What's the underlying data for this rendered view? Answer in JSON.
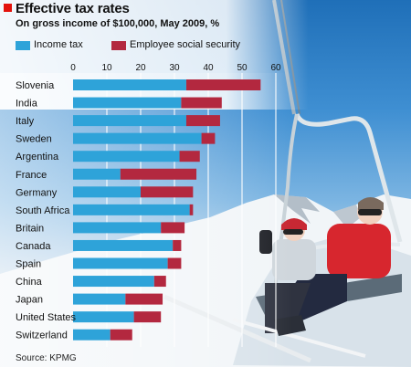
{
  "title": "Effective tax rates",
  "subtitle": "On gross income of $100,000, May 2009, %",
  "source": "Source: KPMG",
  "colors": {
    "income_tax": "#2ea3d9",
    "employee_social_security": "#b3283f",
    "accent": "#e3120b"
  },
  "chart_data": {
    "type": "bar",
    "orientation": "horizontal",
    "stacked": true,
    "title": "Effective tax rates",
    "subtitle": "On gross income of $100,000, May 2009, %",
    "xlim": [
      0,
      60
    ],
    "xticks": [
      "0",
      "10",
      "20",
      "30",
      "40",
      "50",
      "60"
    ],
    "grid": true,
    "legend_position": "top",
    "categories": [
      "Slovenia",
      "India",
      "Italy",
      "Sweden",
      "Argentina",
      "France",
      "Germany",
      "South Africa",
      "Britain",
      "Canada",
      "Spain",
      "China",
      "Japan",
      "United States",
      "Switzerland"
    ],
    "series": [
      {
        "name": "Income tax",
        "color": "#2ea3d9",
        "values": [
          33.5,
          32,
          33.5,
          38,
          31.5,
          14,
          20,
          34.5,
          26,
          29.5,
          28,
          24,
          15.5,
          18,
          11
        ]
      },
      {
        "name": "Employee social security",
        "color": "#b3283f",
        "values": [
          22,
          12,
          10,
          4,
          6,
          22.5,
          15.5,
          1,
          7,
          2.5,
          4,
          3.5,
          11,
          8,
          6.5
        ]
      }
    ]
  }
}
